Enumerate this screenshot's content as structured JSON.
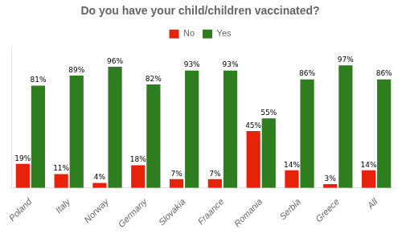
{
  "chart_data": {
    "type": "bar",
    "title": "Do you have your child/children vaccinated?",
    "categories": [
      "Poland",
      "Italy",
      "Norway",
      "Germany",
      "Slovakia",
      "Fraance",
      "Romania",
      "Serbia",
      "Greece",
      "All"
    ],
    "series": [
      {
        "name": "No",
        "color": "#e8210a",
        "values": [
          19,
          11,
          4,
          18,
          7,
          7,
          45,
          14,
          3,
          14
        ],
        "value_labels": [
          "19%",
          "11%",
          "4%",
          "18%",
          "7%",
          "7%",
          "45%",
          "14%",
          "3%",
          "14%"
        ]
      },
      {
        "name": "Yes",
        "color": "#2e7d1e",
        "values": [
          81,
          89,
          96,
          82,
          93,
          93,
          55,
          86,
          97,
          86
        ],
        "value_labels": [
          "81%",
          "89%",
          "96%",
          "82%",
          "93%",
          "93%",
          "55%",
          "86%",
          "97%",
          "86%"
        ]
      }
    ],
    "ylim": [
      0,
      112
    ],
    "yticks": [],
    "grid": false,
    "legend": "top",
    "data_labels": true,
    "tick_labels": "x"
  }
}
